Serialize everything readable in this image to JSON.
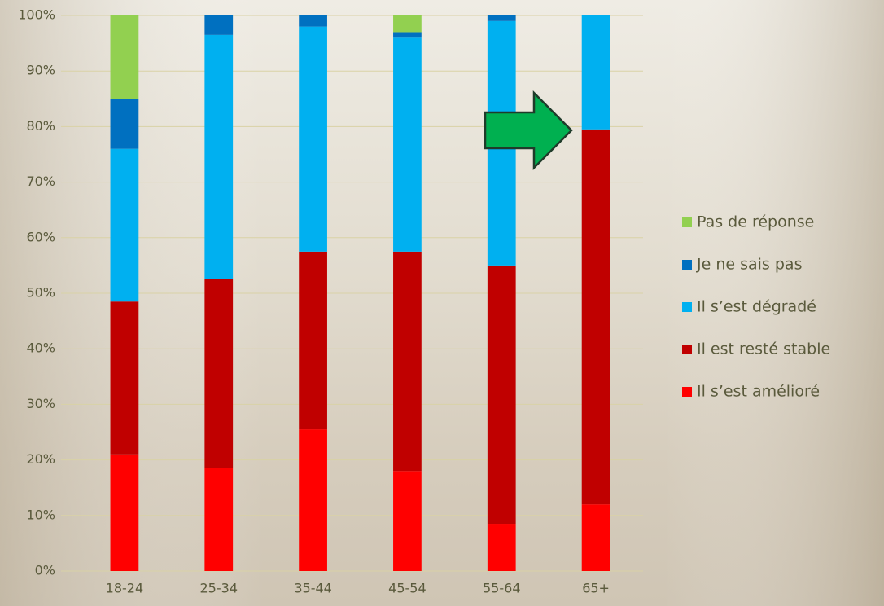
{
  "chart_data": {
    "type": "stacked_bar",
    "categories": [
      "18-24",
      "25-34",
      "35-44",
      "45-54",
      "55-64",
      "65+"
    ],
    "series": [
      {
        "name": "Il s’est amélioré",
        "color": "#ff0000",
        "values": [
          21,
          18.5,
          25.5,
          18,
          8.5,
          12
        ]
      },
      {
        "name": "Il est resté stable",
        "color": "#c00000",
        "values": [
          27.5,
          34,
          32,
          39.5,
          46.5,
          67.5
        ]
      },
      {
        "name": "Il s’est dégradé",
        "color": "#00b0f0",
        "values": [
          27.5,
          44,
          40.5,
          38.5,
          44,
          20.5
        ]
      },
      {
        "name": "Je ne sais pas",
        "color": "#0070c0",
        "values": [
          9,
          3.5,
          2,
          1,
          1,
          0
        ]
      },
      {
        "name": "Pas de réponse",
        "color": "#92d050",
        "values": [
          15,
          0,
          0,
          3,
          0,
          0
        ]
      }
    ],
    "ylim": [
      0,
      100
    ],
    "yticks": [
      {
        "value": 0,
        "label": "0%"
      },
      {
        "value": 10,
        "label": "10%"
      },
      {
        "value": 20,
        "label": "20%"
      },
      {
        "value": 30,
        "label": "30%"
      },
      {
        "value": 40,
        "label": "40%"
      },
      {
        "value": 50,
        "label": "50%"
      },
      {
        "value": 60,
        "label": "60%"
      },
      {
        "value": 70,
        "label": "70%"
      },
      {
        "value": 80,
        "label": "80%"
      },
      {
        "value": 90,
        "label": "90%"
      },
      {
        "value": 100,
        "label": "100%"
      }
    ],
    "grid": true
  }
}
